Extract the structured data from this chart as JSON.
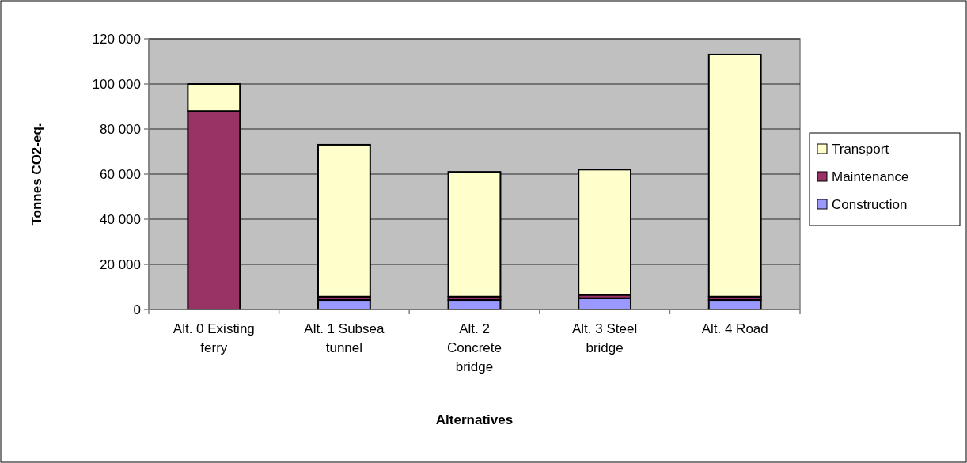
{
  "chart_data": {
    "type": "bar",
    "stacked": true,
    "xlabel": "Alternatives",
    "ylabel": "Tonnes CO2-eq.",
    "categories": [
      "Alt. 0 Existing ferry",
      "Alt. 1 Subsea tunnel",
      "Alt. 2 Concrete bridge",
      "Alt. 3 Steel bridge",
      "Alt. 4 Road"
    ],
    "series": [
      {
        "name": "Construction",
        "color": "#9999ff",
        "values": [
          0,
          4200,
          4200,
          5000,
          4200
        ]
      },
      {
        "name": "Maintenance",
        "color": "#993366",
        "values": [
          88000,
          1500,
          1500,
          1500,
          1500
        ]
      },
      {
        "name": "Transport",
        "color": "#ffffcc",
        "values": [
          12000,
          67300,
          55300,
          55500,
          107300
        ]
      }
    ],
    "ylim": [
      0,
      120000
    ],
    "yticks": [
      {
        "value": 0,
        "label": "0"
      },
      {
        "value": 20000,
        "label": "20 000"
      },
      {
        "value": 40000,
        "label": "40 000"
      },
      {
        "value": 60000,
        "label": "60 000"
      },
      {
        "value": 80000,
        "label": "80 000"
      },
      {
        "value": 100000,
        "label": "100 000"
      },
      {
        "value": 120000,
        "label": "120 000"
      }
    ],
    "grid": "y",
    "legend": "right"
  }
}
